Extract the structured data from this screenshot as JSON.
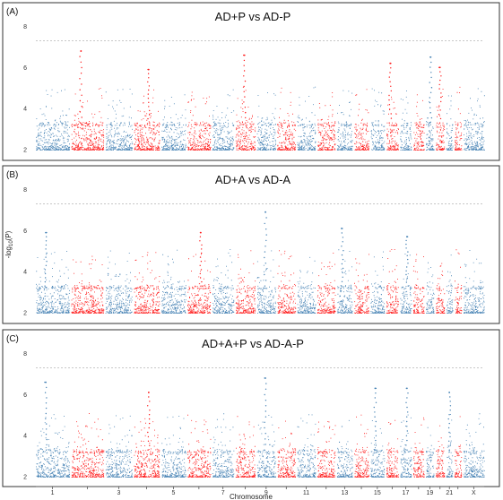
{
  "chart_data": [
    {
      "type": "scatter",
      "panel_label": "(A)",
      "title": "AD+P vs AD-P",
      "ylim": [
        2,
        8.5
      ],
      "yticks": [
        2,
        4,
        6,
        8
      ],
      "threshold": 7.3,
      "peaks": [
        {
          "chrom": "2",
          "value": 6.8
        },
        {
          "chrom": "4",
          "value": 5.9
        },
        {
          "chrom": "8",
          "value": 6.6
        },
        {
          "chrom": "16",
          "value": 6.2
        },
        {
          "chrom": "19",
          "value": 6.5
        },
        {
          "chrom": "20",
          "value": 6.0
        }
      ]
    },
    {
      "type": "scatter",
      "panel_label": "(B)",
      "title": "AD+A vs AD-A",
      "ylim": [
        2,
        8.5
      ],
      "yticks": [
        2,
        4,
        6,
        8
      ],
      "threshold": 7.3,
      "peaks": [
        {
          "chrom": "1",
          "value": 5.9
        },
        {
          "chrom": "6",
          "value": 5.9
        },
        {
          "chrom": "9",
          "value": 6.9
        },
        {
          "chrom": "13",
          "value": 6.1
        },
        {
          "chrom": "17",
          "value": 5.7
        }
      ]
    },
    {
      "type": "scatter",
      "panel_label": "(C)",
      "title": "AD+A+P vs AD-A-P",
      "ylim": [
        2,
        8.5
      ],
      "yticks": [
        2,
        4,
        6,
        8
      ],
      "threshold": 7.3,
      "peaks": [
        {
          "chrom": "1",
          "value": 6.6
        },
        {
          "chrom": "4",
          "value": 6.1
        },
        {
          "chrom": "9",
          "value": 6.8
        },
        {
          "chrom": "15",
          "value": 6.3
        },
        {
          "chrom": "17",
          "value": 6.3
        },
        {
          "chrom": "21",
          "value": 6.1
        }
      ]
    }
  ],
  "ylabel": "-log10(P)",
  "ylabel_main": "-log",
  "ylabel_sub": "10",
  "ylabel_tail": "(P)",
  "xlabel": "Chromosome",
  "chromosomes": [
    "1",
    "2",
    "3",
    "4",
    "5",
    "6",
    "7",
    "8",
    "9",
    "10",
    "11",
    "12",
    "13",
    "14",
    "15",
    "16",
    "17",
    "18",
    "19",
    "20",
    "21",
    "22",
    "X"
  ],
  "x_tick_labels": [
    "1",
    "3",
    "5",
    "7",
    "9",
    "11",
    "13",
    "15",
    "17",
    "19",
    "21",
    "X"
  ],
  "chromosome_lengths": [
    249,
    242,
    198,
    190,
    181,
    171,
    159,
    145,
    138,
    134,
    135,
    133,
    114,
    107,
    102,
    90,
    83,
    80,
    59,
    64,
    47,
    51,
    156
  ],
  "colors": {
    "odd": "#4682b4",
    "even": "#ff1a1a",
    "threshold": "#b5b5b5"
  }
}
